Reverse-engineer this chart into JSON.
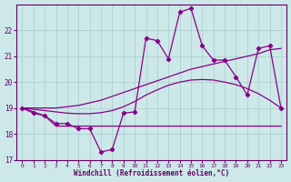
{
  "xlabel": "Windchill (Refroidissement éolien,°C)",
  "bg_color": "#cce8e8",
  "grid_color": "#aacccc",
  "line_color": "#880088",
  "x": [
    0,
    1,
    2,
    3,
    4,
    5,
    6,
    7,
    8,
    9,
    10,
    11,
    12,
    13,
    14,
    15,
    16,
    17,
    18,
    19,
    20,
    21,
    22,
    23
  ],
  "zigzag": [
    19.0,
    18.8,
    18.7,
    18.4,
    18.4,
    18.2,
    18.2,
    17.3,
    17.4,
    18.8,
    18.85,
    21.7,
    21.6,
    20.9,
    22.7,
    22.85,
    21.4,
    20.85,
    20.85,
    20.2,
    19.5,
    21.3,
    21.4,
    19.0
  ],
  "diagonal": [
    19.0,
    19.0,
    19.0,
    19.0,
    19.05,
    19.1,
    19.2,
    19.3,
    19.45,
    19.6,
    19.75,
    19.9,
    20.05,
    20.2,
    20.35,
    20.5,
    20.6,
    20.7,
    20.8,
    20.9,
    21.0,
    21.1,
    21.25,
    21.3
  ],
  "smooth_curve": [
    19.0,
    18.95,
    18.9,
    18.85,
    18.8,
    18.78,
    18.78,
    18.82,
    18.9,
    19.05,
    19.25,
    19.5,
    19.7,
    19.88,
    20.0,
    20.08,
    20.1,
    20.08,
    20.0,
    19.9,
    19.75,
    19.55,
    19.3,
    19.0
  ],
  "flat_line": [
    19.0,
    18.85,
    18.7,
    18.3,
    18.3,
    18.3,
    18.3,
    18.3,
    18.3,
    18.3,
    18.3,
    18.3,
    18.3,
    18.3,
    18.3,
    18.3,
    18.3,
    18.3,
    18.3,
    18.3,
    18.3,
    18.3,
    18.3,
    18.3
  ],
  "ylim": [
    17.0,
    23.0
  ],
  "yticks": [
    17,
    18,
    19,
    20,
    21,
    22
  ],
  "xticks": [
    0,
    1,
    2,
    3,
    4,
    5,
    6,
    7,
    8,
    9,
    10,
    11,
    12,
    13,
    14,
    15,
    16,
    17,
    18,
    19,
    20,
    21,
    22,
    23
  ]
}
